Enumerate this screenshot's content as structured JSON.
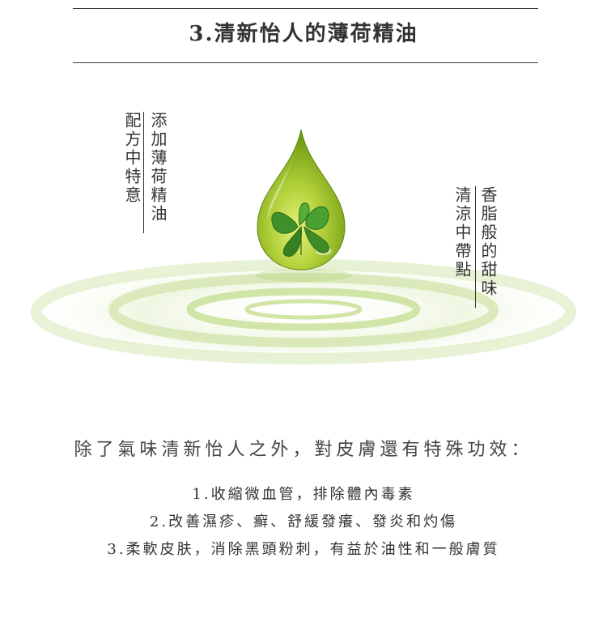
{
  "header": {
    "title": "3.清新怡人的薄荷精油"
  },
  "left_annotation": {
    "line1": "配方中特意",
    "line2": "添加薄荷精油"
  },
  "right_annotation": {
    "line1": "清涼中帶點",
    "line2": "香脂般的甜味"
  },
  "illustration": {
    "icon": "mint-oil-drop",
    "drop_color": "#9ac23c",
    "leaf_color": "#3f8f2a",
    "ripple_color": "#cfe3a8"
  },
  "content": {
    "intro": "除了氣味清新怡人之外，對皮膚還有特殊功效：",
    "benefits": [
      "1.收縮微血管，排除體內毒素",
      "2.改善濕疹、癬、舒緩發癢、發炎和灼傷",
      "3.柔軟皮肤，消除黑頭粉刺，有益於油性和一般膚質"
    ]
  }
}
